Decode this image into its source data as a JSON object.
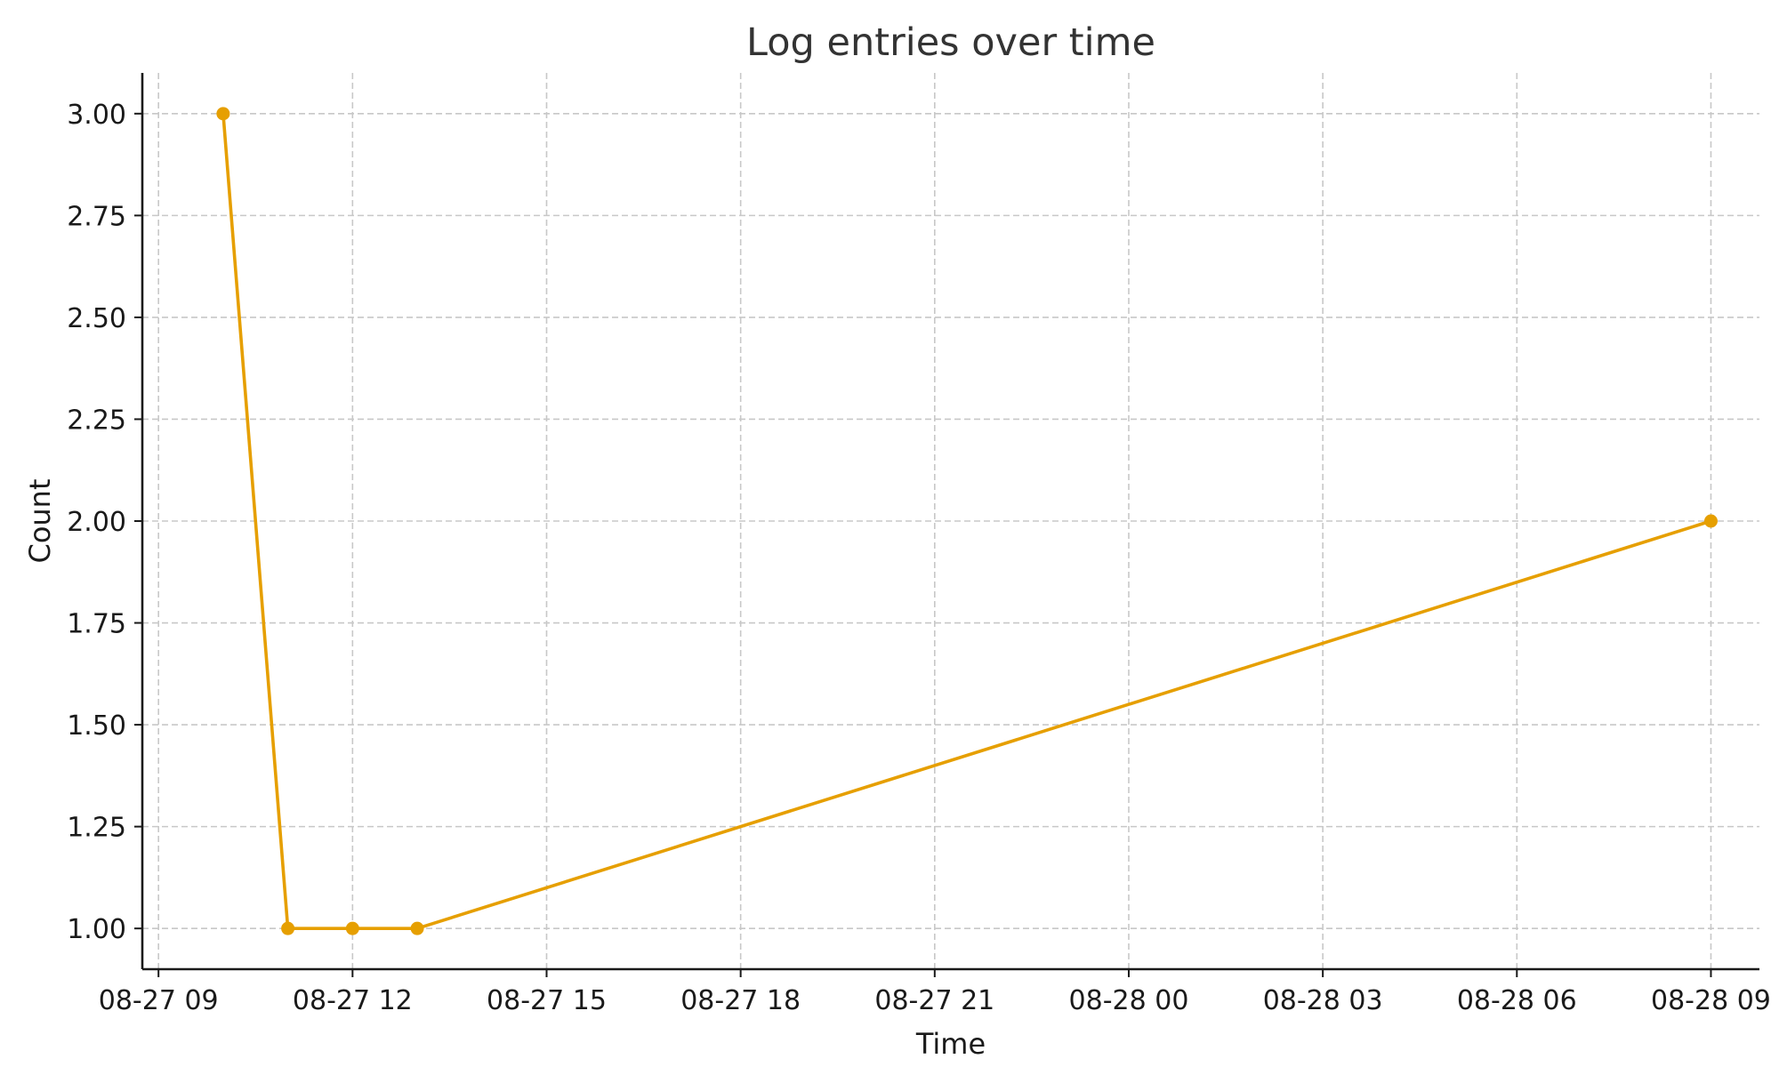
{
  "chart_data": {
    "type": "line",
    "title": "Log entries over time",
    "xlabel": "Time",
    "ylabel": "Count",
    "xlim": [
      "2023-08-27 08:45",
      "2023-08-28 09:45"
    ],
    "ylim": [
      0.9,
      3.1
    ],
    "x_ticks": [
      {
        "value": "2023-08-27 09:00",
        "label": "08-27 09"
      },
      {
        "value": "2023-08-27 12:00",
        "label": "08-27 12"
      },
      {
        "value": "2023-08-27 15:00",
        "label": "08-27 15"
      },
      {
        "value": "2023-08-27 18:00",
        "label": "08-27 18"
      },
      {
        "value": "2023-08-27 21:00",
        "label": "08-27 21"
      },
      {
        "value": "2023-08-28 00:00",
        "label": "08-28 00"
      },
      {
        "value": "2023-08-28 03:00",
        "label": "08-28 03"
      },
      {
        "value": "2023-08-28 06:00",
        "label": "08-28 06"
      },
      {
        "value": "2023-08-28 09:00",
        "label": "08-28 09"
      }
    ],
    "y_ticks": [
      {
        "value": 1.0,
        "label": "1.00"
      },
      {
        "value": 1.25,
        "label": "1.25"
      },
      {
        "value": 1.5,
        "label": "1.50"
      },
      {
        "value": 1.75,
        "label": "1.75"
      },
      {
        "value": 2.0,
        "label": "2.00"
      },
      {
        "value": 2.25,
        "label": "2.25"
      },
      {
        "value": 2.5,
        "label": "2.50"
      },
      {
        "value": 2.75,
        "label": "2.75"
      },
      {
        "value": 3.0,
        "label": "3.00"
      }
    ],
    "grid": true,
    "legend": "none",
    "series": [
      {
        "color": "#E69F00",
        "points": [
          {
            "x": "2023-08-27 10:00",
            "y": 3
          },
          {
            "x": "2023-08-27 11:00",
            "y": 1
          },
          {
            "x": "2023-08-27 12:00",
            "y": 1
          },
          {
            "x": "2023-08-27 13:00",
            "y": 1
          },
          {
            "x": "2023-08-28 09:00",
            "y": 2
          }
        ]
      }
    ]
  }
}
